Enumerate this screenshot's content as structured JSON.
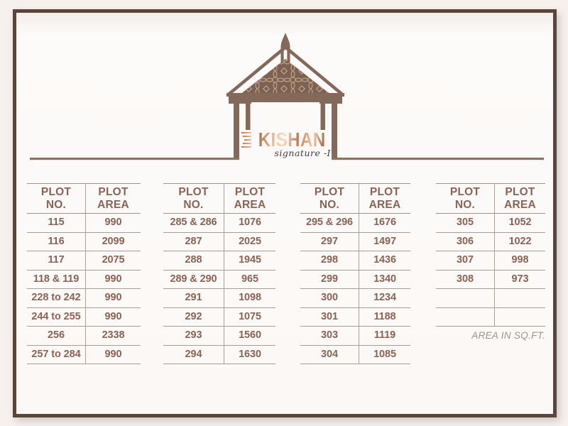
{
  "logo": {
    "brand": "KISHAN",
    "tagline": "signature -I"
  },
  "note": "AREA IN SQ.FT.",
  "table_headers": {
    "col1": [
      "PLOT",
      "NO."
    ],
    "col2": [
      "PLOT",
      "AREA"
    ]
  },
  "tables": [
    {
      "rows": [
        [
          "115",
          "990"
        ],
        [
          "116",
          "2099"
        ],
        [
          "117",
          "2075"
        ],
        [
          "118 & 119",
          "990"
        ],
        [
          "228 to 242",
          "990"
        ],
        [
          "244 to 255",
          "990"
        ],
        [
          "256",
          "2338"
        ],
        [
          "257 to 284",
          "990"
        ]
      ]
    },
    {
      "rows": [
        [
          "285 & 286",
          "1076"
        ],
        [
          "287",
          "2025"
        ],
        [
          "288",
          "1945"
        ],
        [
          "289 & 290",
          "965"
        ],
        [
          "291",
          "1098"
        ],
        [
          "292",
          "1075"
        ],
        [
          "293",
          "1560"
        ],
        [
          "294",
          "1630"
        ]
      ]
    },
    {
      "rows": [
        [
          "295 & 296",
          "1676"
        ],
        [
          "297",
          "1497"
        ],
        [
          "298",
          "1436"
        ],
        [
          "299",
          "1340"
        ],
        [
          "300",
          "1234"
        ],
        [
          "301",
          "1188"
        ],
        [
          "303",
          "1119"
        ],
        [
          "304",
          "1085"
        ]
      ]
    },
    {
      "rows": [
        [
          "305",
          "1052"
        ],
        [
          "306",
          "1022"
        ],
        [
          "307",
          "998"
        ],
        [
          "308",
          "973"
        ],
        [
          "",
          ""
        ],
        [
          "",
          ""
        ]
      ]
    }
  ],
  "colors": {
    "frame": "#5a453b",
    "structure_brown": "#84685a",
    "pediment_fill": "#7d6154",
    "ornament_tan": "#c9a983",
    "text_brown": "#8a6355",
    "table_line": "#a89b91",
    "logo_copper_light": "#fadfc6",
    "logo_copper_dark": "#a06a49",
    "tagline_dark": "#3d3d3d",
    "bg_outer": "#f7f1ee",
    "bg_inner": "#fbf8f6"
  }
}
